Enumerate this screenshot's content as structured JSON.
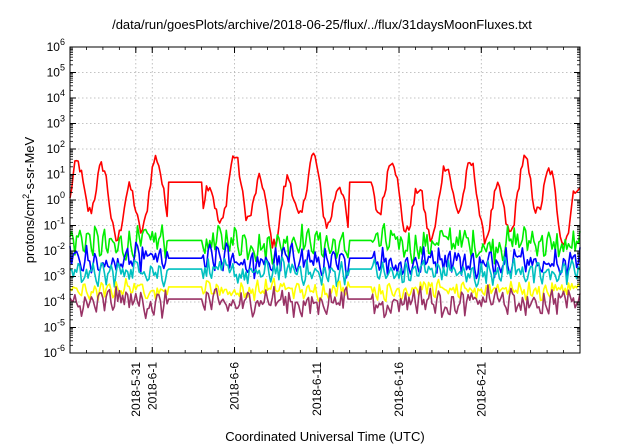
{
  "chart_data": {
    "type": "line",
    "title": "/data/run/goesPlots/archive/2018-06-25/flux/../flux/31daysMoonFluxes.txt",
    "xlabel": "Coordinated Universal Time (UTC)",
    "ylabel": {
      "base": "protons/cm",
      "sup": "2",
      "rest": "-s-sr-MeV"
    },
    "y_scale": "log",
    "ylim": [
      1e-06,
      1000000.0
    ],
    "y_ticks": [
      {
        "value": 1e-06,
        "base": "10",
        "exp": "-6"
      },
      {
        "value": 1e-05,
        "base": "10",
        "exp": "-5"
      },
      {
        "value": 0.0001,
        "base": "10",
        "exp": "-4"
      },
      {
        "value": 0.001,
        "base": "10",
        "exp": "-3"
      },
      {
        "value": 0.01,
        "base": "10",
        "exp": "-2"
      },
      {
        "value": 0.1,
        "base": "10",
        "exp": "-1"
      },
      {
        "value": 1,
        "base": "10",
        "exp": "0"
      },
      {
        "value": 10,
        "base": "10",
        "exp": "1"
      },
      {
        "value": 100,
        "base": "10",
        "exp": "2"
      },
      {
        "value": 1000,
        "base": "10",
        "exp": "3"
      },
      {
        "value": 10000,
        "base": "10",
        "exp": "4"
      },
      {
        "value": 100000,
        "base": "10",
        "exp": "5"
      },
      {
        "value": 1000000,
        "base": "10",
        "exp": "6"
      }
    ],
    "xlim": [
      "2018-05-27",
      "2018-06-27"
    ],
    "x_ticks": [
      "2018-5-31",
      "2018-6-1",
      "2018-6-6",
      "2018-6-11",
      "2018-6-16",
      "2018-6-21"
    ],
    "grid": true,
    "gaps": [
      {
        "start": "2018-06-02",
        "end": "2018-06-04"
      },
      {
        "start": "2018-06-13",
        "end": "2018-06-14.3"
      }
    ],
    "series": [
      {
        "color": "#ff0000",
        "median": 1.0,
        "amplitude_decades": 1.1,
        "period_days": 1.6,
        "noise": 0.25
      },
      {
        "color": "#00ee00",
        "median": 0.02,
        "amplitude_decades": 0.25,
        "period_days": 0.5,
        "noise": 0.45
      },
      {
        "color": "#0000ff",
        "median": 0.004,
        "amplitude_decades": 0.25,
        "period_days": 0.5,
        "noise": 0.4
      },
      {
        "color": "#00c0c0",
        "median": 0.0015,
        "amplitude_decades": 0.2,
        "period_days": 0.5,
        "noise": 0.35
      },
      {
        "color": "#ffff00",
        "median": 0.0003,
        "amplitude_decades": 0.15,
        "period_days": 0.5,
        "noise": 0.25
      },
      {
        "color": "#993366",
        "median": 0.0001,
        "amplitude_decades": 0.2,
        "period_days": 0.5,
        "noise": 0.4
      }
    ]
  }
}
